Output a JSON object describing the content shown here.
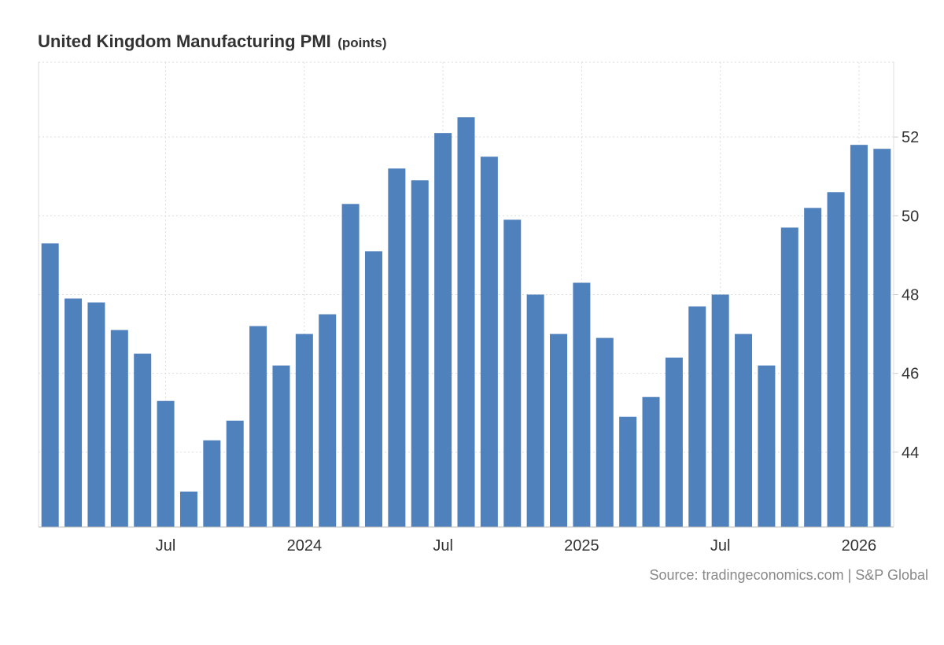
{
  "chart_data": {
    "type": "bar",
    "title": "United Kingdom Manufacturing PMI",
    "unit": "(points)",
    "source": "Source: tradingeconomics.com | S&P Global",
    "color": "#4f81bd",
    "ylim": [
      42.1,
      53.9
    ],
    "yticks": [
      44,
      46,
      48,
      50,
      52
    ],
    "grid": true,
    "axis_position": "right",
    "x_tick_labels": [
      {
        "label": "Jul",
        "index": 5
      },
      {
        "label": "2024",
        "index": 11
      },
      {
        "label": "Jul",
        "index": 17
      },
      {
        "label": "2025",
        "index": 23
      },
      {
        "label": "Jul",
        "index": 29
      },
      {
        "label": "2026",
        "index": 35
      }
    ],
    "categories": [
      "2023-02",
      "2023-03",
      "2023-04",
      "2023-05",
      "2023-06",
      "2023-07",
      "2023-08",
      "2023-09",
      "2023-10",
      "2023-11",
      "2023-12",
      "2024-01",
      "2024-02",
      "2024-03",
      "2024-04",
      "2024-05",
      "2024-06",
      "2024-07",
      "2024-08",
      "2024-09",
      "2024-10",
      "2024-11",
      "2024-12",
      "2025-01",
      "2025-02",
      "2025-03",
      "2025-04",
      "2025-05",
      "2025-06",
      "2025-07",
      "2025-08",
      "2025-09",
      "2025-10",
      "2025-11",
      "2025-12",
      "2026-01",
      "2026-02"
    ],
    "values": [
      49.3,
      47.9,
      47.8,
      47.1,
      46.5,
      45.3,
      43.0,
      44.3,
      44.8,
      47.2,
      46.2,
      47.0,
      47.5,
      50.3,
      49.1,
      51.2,
      50.9,
      52.1,
      52.5,
      51.5,
      49.9,
      48.0,
      47.0,
      48.3,
      46.9,
      44.9,
      45.4,
      46.4,
      47.7,
      48.0,
      47.0,
      46.2,
      49.7,
      50.2,
      50.6,
      51.8,
      51.7
    ]
  }
}
